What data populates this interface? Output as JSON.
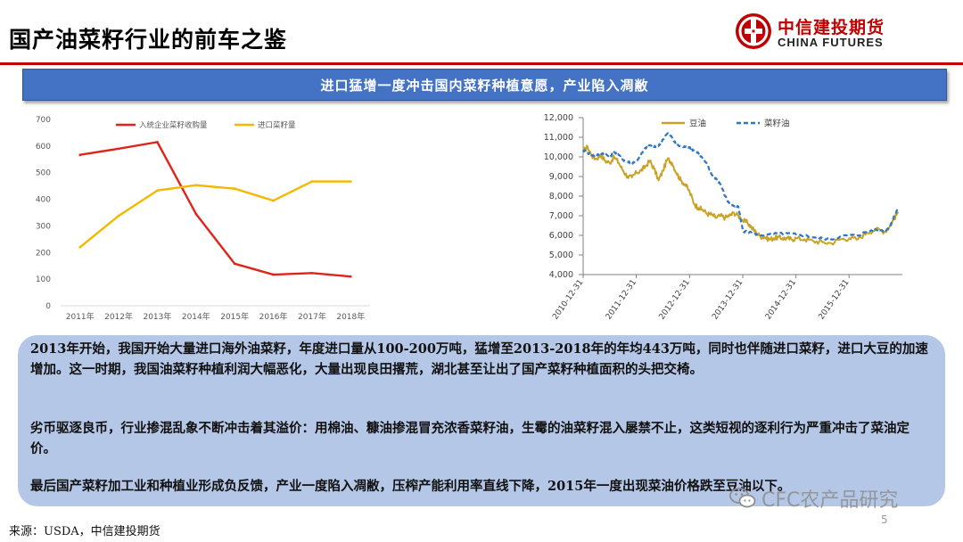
{
  "header": {
    "title": "国产油菜籽行业的前车之鉴",
    "logo_cn": "中信建投期货",
    "logo_en": "CHINA FUTURES"
  },
  "banner": {
    "text": "进口猛增一度冲击国内菜籽种植意愿，产业陷入凋敝"
  },
  "body": {
    "p1": "2013年开始，我国开始大量进口海外油菜籽，年度进口量从100-200万吨，猛增至2013-2018年的年均443万吨，同时也伴随进口菜籽，进口大豆的加速增加。这一时期，我国油菜籽种植利润大幅恶化，大量出现良田撂荒，湖北甚至让出了国产菜籽种植面积的头把交椅。",
    "p2": "劣币驱逐良币，行业掺混乱象不断冲击着其溢价：用棉油、糠油掺混冒充浓香菜籽油，生霉的油菜籽混入屡禁不止，这类短视的逐利行为严重冲击了菜油定价。",
    "p3": "最后国产菜籽加工业和种植业形成负反馈，产业一度陷入凋敝，压榨产能利用率直线下降，2015年一度出现菜油价格跌至豆油以下。"
  },
  "source": "来源：USDA，中信建投期货",
  "page_number": "5",
  "watermark": "CFC农产品研究",
  "colors": {
    "red": "#e0241c",
    "yellow": "#f5b800",
    "gold": "#c9a227",
    "blue": "#2e75c8",
    "banner": "#4472c4",
    "box": "#b4c7e7"
  },
  "chart_data": [
    {
      "type": "line",
      "categories": [
        "2011年",
        "2012年",
        "2013年",
        "2014年",
        "2015年",
        "2016年",
        "2017年",
        "2018年"
      ],
      "series": [
        {
          "name": "入统企业菜籽收购量",
          "color": "#e0241c",
          "values": [
            567,
            590,
            615,
            345,
            158,
            117,
            123,
            110
          ]
        },
        {
          "name": "进口菜籽量",
          "color": "#f5b800",
          "values": [
            220,
            338,
            433,
            453,
            440,
            395,
            467,
            467
          ]
        }
      ],
      "ylim": [
        0,
        700
      ],
      "yticks": [
        "0",
        "100",
        "200",
        "300",
        "400",
        "500",
        "600",
        "700"
      ],
      "legend": "top-center",
      "grid": false
    },
    {
      "type": "line",
      "x_ticks": [
        "2010-12-31",
        "2011-12-31",
        "2012-12-31",
        "2013-12-31",
        "2014-12-31",
        "2015-12-31"
      ],
      "x_range": [
        "2010-12-31",
        "2016-12-31"
      ],
      "ylim": [
        4000,
        12000
      ],
      "yticks": [
        "4,000",
        "5,000",
        "6,000",
        "7,000",
        "8,000",
        "9,000",
        "10,000",
        "11,000",
        "12,000"
      ],
      "legend": "top",
      "grid": false,
      "series": [
        {
          "name": "豆油",
          "color": "#c9a227",
          "style": "solid",
          "points": [
            [
              "2010-12-31",
              10300
            ],
            [
              "2011-01-31",
              10500
            ],
            [
              "2011-03-01",
              10050
            ],
            [
              "2011-04-01",
              9900
            ],
            [
              "2011-05-01",
              10100
            ],
            [
              "2011-06-01",
              9800
            ],
            [
              "2011-07-01",
              9700
            ],
            [
              "2011-08-01",
              10000
            ],
            [
              "2011-09-01",
              9700
            ],
            [
              "2011-10-01",
              9300
            ],
            [
              "2011-11-01",
              9000
            ],
            [
              "2011-12-01",
              8950
            ],
            [
              "2012-01-01",
              9200
            ],
            [
              "2012-02-01",
              9300
            ],
            [
              "2012-03-01",
              9500
            ],
            [
              "2012-04-01",
              9800
            ],
            [
              "2012-05-01",
              9400
            ],
            [
              "2012-06-01",
              8800
            ],
            [
              "2012-07-01",
              9300
            ],
            [
              "2012-08-01",
              9900
            ],
            [
              "2012-09-01",
              9700
            ],
            [
              "2012-10-01",
              9200
            ],
            [
              "2012-11-01",
              8800
            ],
            [
              "2012-12-01",
              8600
            ],
            [
              "2013-01-01",
              8200
            ],
            [
              "2013-02-01",
              7600
            ],
            [
              "2013-03-01",
              7400
            ],
            [
              "2013-04-01",
              7300
            ],
            [
              "2013-05-01",
              7100
            ],
            [
              "2013-06-01",
              7050
            ],
            [
              "2013-07-01",
              6900
            ],
            [
              "2013-08-01",
              7000
            ],
            [
              "2013-09-01",
              6900
            ],
            [
              "2013-10-01",
              7000
            ],
            [
              "2013-11-01",
              7150
            ],
            [
              "2013-12-01",
              7000
            ],
            [
              "2014-01-01",
              6750
            ],
            [
              "2014-02-01",
              6650
            ],
            [
              "2014-03-01",
              6400
            ],
            [
              "2014-04-01",
              6150
            ],
            [
              "2014-05-01",
              5950
            ],
            [
              "2014-06-01",
              5900
            ],
            [
              "2014-07-01",
              5800
            ],
            [
              "2014-08-01",
              5850
            ],
            [
              "2014-09-01",
              5900
            ],
            [
              "2014-10-01",
              5850
            ],
            [
              "2014-11-01",
              5850
            ],
            [
              "2014-12-01",
              5800
            ],
            [
              "2015-01-01",
              5850
            ],
            [
              "2015-03-01",
              5800
            ],
            [
              "2015-05-01",
              5700
            ],
            [
              "2015-07-01",
              5650
            ],
            [
              "2015-09-01",
              5600
            ],
            [
              "2015-11-01",
              5800
            ],
            [
              "2016-01-01",
              5850
            ],
            [
              "2016-03-01",
              5800
            ],
            [
              "2016-05-01",
              6150
            ],
            [
              "2016-07-01",
              6300
            ],
            [
              "2016-09-01",
              6200
            ],
            [
              "2016-10-01",
              6400
            ],
            [
              "2016-11-01",
              6800
            ],
            [
              "2016-12-01",
              7200
            ]
          ]
        },
        {
          "name": "菜籽油",
          "color": "#2e75c8",
          "style": "dashed",
          "points": [
            [
              "2010-12-31",
              10350
            ],
            [
              "2011-02-01",
              10200
            ],
            [
              "2011-03-01",
              10100
            ],
            [
              "2011-04-01",
              10050
            ],
            [
              "2011-05-01",
              10200
            ],
            [
              "2011-06-01",
              10150
            ],
            [
              "2011-07-01",
              10000
            ],
            [
              "2011-08-01",
              10250
            ],
            [
              "2011-09-01",
              10100
            ],
            [
              "2011-10-01",
              9850
            ],
            [
              "2011-11-01",
              9750
            ],
            [
              "2011-12-01",
              9700
            ],
            [
              "2012-01-01",
              9800
            ],
            [
              "2012-02-01",
              10100
            ],
            [
              "2012-03-01",
              10450
            ],
            [
              "2012-04-01",
              10600
            ],
            [
              "2012-05-01",
              10500
            ],
            [
              "2012-06-01",
              10550
            ],
            [
              "2012-07-01",
              10900
            ],
            [
              "2012-08-01",
              11200
            ],
            [
              "2012-09-01",
              11000
            ],
            [
              "2012-10-01",
              10600
            ],
            [
              "2012-11-01",
              10550
            ],
            [
              "2012-12-01",
              10500
            ],
            [
              "2013-01-01",
              10500
            ],
            [
              "2013-02-01",
              10300
            ],
            [
              "2013-03-01",
              10200
            ],
            [
              "2013-04-01",
              9900
            ],
            [
              "2013-05-01",
              9600
            ],
            [
              "2013-06-01",
              9100
            ],
            [
              "2013-07-01",
              8900
            ],
            [
              "2013-08-01",
              8600
            ],
            [
              "2013-09-01",
              8000
            ],
            [
              "2013-10-01",
              7600
            ],
            [
              "2013-11-01",
              7500
            ],
            [
              "2013-12-01",
              7450
            ],
            [
              "2014-01-01",
              6200
            ],
            [
              "2014-03-01",
              6150
            ],
            [
              "2014-05-01",
              6000
            ],
            [
              "2014-07-01",
              6050
            ],
            [
              "2014-09-01",
              6100
            ],
            [
              "2014-11-01",
              6100
            ],
            [
              "2015-01-01",
              6050
            ],
            [
              "2015-03-01",
              6000
            ],
            [
              "2015-05-01",
              5900
            ],
            [
              "2015-07-01",
              5850
            ],
            [
              "2015-09-01",
              5800
            ],
            [
              "2015-11-01",
              5950
            ],
            [
              "2016-01-01",
              6000
            ],
            [
              "2016-03-01",
              6000
            ],
            [
              "2016-05-01",
              6200
            ],
            [
              "2016-07-01",
              6300
            ],
            [
              "2016-09-01",
              6250
            ],
            [
              "2016-10-01",
              6400
            ],
            [
              "2016-11-01",
              6900
            ],
            [
              "2016-12-01",
              7400
            ]
          ]
        }
      ]
    }
  ]
}
